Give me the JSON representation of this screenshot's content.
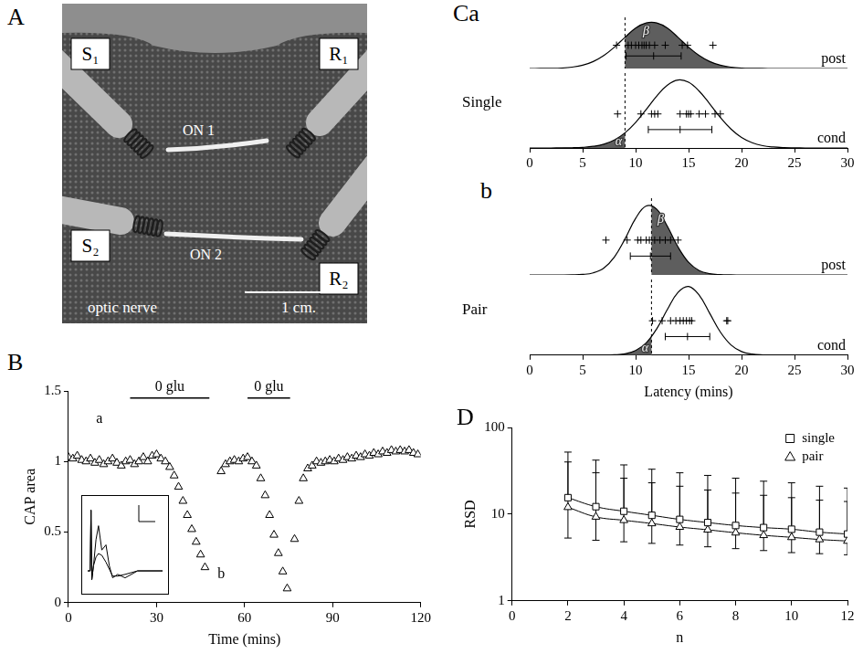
{
  "photo": {
    "panel_label": "A",
    "labels": {
      "s1": "S₁",
      "r1": "R₁",
      "on1": "ON 1",
      "s2": "S₂",
      "on2": "ON 2",
      "r2": "R₂",
      "nerve": "optic nerve",
      "scale": "1 cm."
    }
  },
  "chart_data": [
    {
      "panel_label": "B",
      "type": "scatter",
      "xlabel": "Time (mins)",
      "ylabel": "CAP area",
      "xlim": [
        0,
        120
      ],
      "xticks": [
        0,
        30,
        60,
        90,
        120
      ],
      "ylim": [
        0,
        1.5
      ],
      "yticks": [
        0,
        0.5,
        1,
        1.5
      ],
      "grid": false,
      "marker": "triangle",
      "color": "#000000",
      "x": [
        0,
        1.5,
        3,
        4.5,
        6,
        7.5,
        9,
        10.5,
        12,
        13.5,
        15,
        16.5,
        18,
        19.5,
        21,
        22.5,
        24,
        25.5,
        27,
        28.5,
        30,
        31.5,
        33,
        34.5,
        36,
        37.5,
        39,
        40.5,
        42,
        43.5,
        45,
        46.5,
        52,
        53.5,
        55,
        56.5,
        58,
        59.5,
        61,
        62.5,
        64,
        65.5,
        67,
        68.5,
        70,
        71.5,
        73,
        74.5,
        77,
        78.5,
        80,
        81.5,
        83,
        84.5,
        86,
        87.5,
        89,
        90.5,
        92,
        93.5,
        95,
        96.5,
        98,
        99.5,
        101,
        102.5,
        104,
        105.5,
        107,
        108.5,
        110,
        111.5,
        113,
        114.5,
        116,
        117.5,
        119
      ],
      "values": [
        1.03,
        1.02,
        1.04,
        1.01,
        1.0,
        1.02,
        0.99,
        1.01,
        0.98,
        1.0,
        1.02,
        0.99,
        0.97,
        1.0,
        1.01,
        0.98,
        1.0,
        1.03,
        1.0,
        1.04,
        1.05,
        1.02,
        1.0,
        0.96,
        0.9,
        0.82,
        0.72,
        0.62,
        0.52,
        0.43,
        0.34,
        0.25,
        0.93,
        0.98,
        1.0,
        1.01,
        1.0,
        1.02,
        1.03,
        1.0,
        0.97,
        0.88,
        0.76,
        0.62,
        0.48,
        0.35,
        0.22,
        0.1,
        0.45,
        0.72,
        0.88,
        0.95,
        0.97,
        1.0,
        0.99,
        1.0,
        1.01,
        1.0,
        1.02,
        1.01,
        1.03,
        1.02,
        1.04,
        1.03,
        1.05,
        1.04,
        1.06,
        1.05,
        1.07,
        1.06,
        1.08,
        1.07,
        1.08,
        1.07,
        1.08,
        1.06,
        1.05
      ],
      "annotations": [
        {
          "text": "0 glu",
          "x": [
            21,
            48
          ],
          "y": 1.45
        },
        {
          "text": "0 glu",
          "x": [
            61,
            75.5
          ],
          "y": 1.45
        },
        {
          "text": "a",
          "x": 10.5,
          "y": 1.3
        },
        {
          "text": "b",
          "x": 52,
          "y": 0.2
        }
      ]
    },
    {
      "type": "line",
      "tick_labels": false,
      "xlim": [
        0,
        9
      ],
      "ylim": [
        -1,
        4
      ],
      "x": [
        0,
        0.3,
        0.4,
        0.5,
        0.7,
        1.0,
        1.3,
        1.7,
        2.2,
        2.6,
        3.0,
        3.6,
        4.5,
        6.0,
        9.0
      ],
      "series": [
        {
          "color": "#000000",
          "values": [
            0,
            0,
            3.5,
            -0.5,
            0.3,
            1.8,
            2.6,
            1.2,
            1.5,
            0.3,
            -0.4,
            -0.2,
            -0.4,
            0,
            0
          ]
        },
        {
          "color": "#000000",
          "values": [
            0,
            0,
            3.5,
            -0.5,
            0.3,
            0.8,
            1.0,
            0.9,
            0.5,
            0.1,
            -0.3,
            -0.3,
            -0.2,
            0,
            0
          ]
        }
      ]
    },
    {
      "panel_label": "Ca",
      "type": "distribution",
      "side_label": "Single",
      "marker": "cross",
      "xlim": [
        0,
        30
      ],
      "xticks": [
        0,
        5,
        10,
        15,
        20,
        25,
        30
      ],
      "threshold": 9,
      "curve_x": [
        0,
        1,
        2,
        3,
        4,
        5,
        6,
        7,
        8,
        9,
        10,
        11,
        12,
        13,
        14,
        15,
        16,
        17,
        18,
        19,
        20,
        21,
        22,
        23,
        24,
        25,
        26,
        27,
        28,
        29,
        30
      ],
      "rows": [
        {
          "name": "post",
          "curve": [
            0,
            0.001,
            0.003,
            0.01,
            0.03,
            0.07,
            0.15,
            0.28,
            0.46,
            0.67,
            0.87,
            0.98,
            0.98,
            0.87,
            0.67,
            0.46,
            0.28,
            0.15,
            0.07,
            0.03,
            0.01,
            0.003,
            0.001,
            0,
            0,
            0,
            0,
            0,
            0,
            0,
            0
          ],
          "points": [
            8.2,
            9.3,
            9.6,
            10.0,
            10.3,
            10.6,
            10.8,
            11.0,
            11.3,
            11.8,
            12.8,
            14.4,
            14.9,
            17.3
          ],
          "mean": 11.7,
          "error": [
            9.1,
            14.3
          ],
          "shade": {
            "label": "β",
            "from": 9,
            "to": 30,
            "color": "#5e5e5e"
          }
        },
        {
          "name": "cond",
          "curve": [
            0,
            0,
            0,
            0.001,
            0.003,
            0.009,
            0.024,
            0.056,
            0.118,
            0.223,
            0.375,
            0.566,
            0.764,
            0.923,
            0.998,
            0.965,
            0.835,
            0.647,
            0.448,
            0.278,
            0.154,
            0.077,
            0.034,
            0.014,
            0.005,
            0.002,
            0,
            0,
            0,
            0,
            0
          ],
          "points": [
            8.3,
            10.5,
            11.5,
            11.8,
            12.1,
            14.2,
            14.8,
            15.0,
            15.2,
            16.0,
            16.6,
            17.5,
            18.0
          ],
          "mean": 14.2,
          "error": [
            11.2,
            17.2
          ],
          "shade": {
            "label": "α",
            "from": 0,
            "to": 9,
            "color": "#5e5e5e"
          }
        }
      ]
    },
    {
      "panel_label": "b",
      "type": "distribution",
      "side_label": "Pair",
      "marker": "cross",
      "xlabel": "Latency (mins)",
      "xlim": [
        0,
        30
      ],
      "xticks": [
        0,
        5,
        10,
        15,
        20,
        25,
        30
      ],
      "threshold": 11.5,
      "curve_x": [
        0,
        1,
        2,
        3,
        4,
        5,
        6,
        7,
        8,
        9,
        10,
        11,
        12,
        13,
        14,
        15,
        16,
        17,
        18,
        19,
        20,
        21,
        22,
        23,
        24,
        25,
        26,
        27,
        28,
        29,
        30
      ],
      "rows": [
        {
          "name": "post",
          "curve": [
            0,
            0,
            0,
            0,
            0.001,
            0.007,
            0.03,
            0.099,
            0.257,
            0.516,
            0.81,
            0.989,
            0.941,
            0.697,
            0.402,
            0.181,
            0.063,
            0.017,
            0.004,
            0.001,
            0,
            0,
            0,
            0,
            0,
            0,
            0,
            0,
            0,
            0,
            0
          ],
          "points": [
            7.2,
            9.2,
            10.2,
            10.5,
            11.0,
            11.3,
            11.8,
            12.3,
            12.8,
            13.3,
            14.0
          ],
          "mean": 11.4,
          "error": [
            9.5,
            13.3
          ],
          "shade": {
            "label": "β",
            "from": 11.5,
            "to": 30,
            "color": "#5e5e5e"
          }
        },
        {
          "name": "cond",
          "curve": [
            0,
            0,
            0,
            0,
            0,
            0,
            0,
            0.001,
            0.005,
            0.019,
            0.066,
            0.178,
            0.385,
            0.664,
            0.912,
            0.999,
            0.872,
            0.607,
            0.336,
            0.149,
            0.052,
            0.015,
            0.003,
            0.001,
            0,
            0,
            0,
            0,
            0,
            0,
            0
          ],
          "points": [
            11.6,
            12.5,
            13.3,
            13.8,
            14.2,
            14.5,
            14.8,
            15.1,
            15.3,
            18.6,
            18.7
          ],
          "mean": 14.9,
          "error": [
            12.8,
            17.0
          ],
          "shade": {
            "label": "α",
            "from": 0,
            "to": 11.5,
            "color": "#5e5e5e"
          }
        }
      ]
    },
    {
      "panel_label": "D",
      "type": "scatter",
      "xlabel": "n",
      "ylabel": "RSD",
      "log": "y",
      "grid": false,
      "legend": "upper right",
      "xlim": [
        0,
        12
      ],
      "xticks": [
        0,
        2,
        4,
        6,
        8,
        10,
        12
      ],
      "ylim": [
        1,
        100
      ],
      "yticks": [
        1,
        10,
        100
      ],
      "x": [
        2,
        3,
        4,
        5,
        6,
        7,
        8,
        9,
        10,
        11,
        12
      ],
      "series": [
        {
          "name": "single",
          "marker": "square",
          "line_style": "solid",
          "color": "#000000",
          "values": [
            15.5,
            12.2,
            10.8,
            9.7,
            8.7,
            8.0,
            7.4,
            7.0,
            6.7,
            6.2,
            5.9
          ],
          "err_high": [
            52,
            42,
            37,
            33,
            30,
            28,
            26,
            24,
            23,
            21,
            20
          ]
        },
        {
          "name": "pair",
          "marker": "triangle",
          "line_style": "solid",
          "color": "#000000",
          "values": [
            12.0,
            9.3,
            8.5,
            7.8,
            7.1,
            6.6,
            6.1,
            5.7,
            5.4,
            5.1,
            4.9
          ],
          "err_high": [
            40,
            30,
            26,
            23,
            21,
            19,
            17.5,
            16.5,
            15.5,
            14.5,
            14
          ],
          "err_low": [
            5.3,
            5.0,
            4.8,
            4.6,
            4.4,
            4.2,
            4.0,
            3.8,
            3.6,
            3.5,
            3.4
          ]
        }
      ]
    }
  ]
}
